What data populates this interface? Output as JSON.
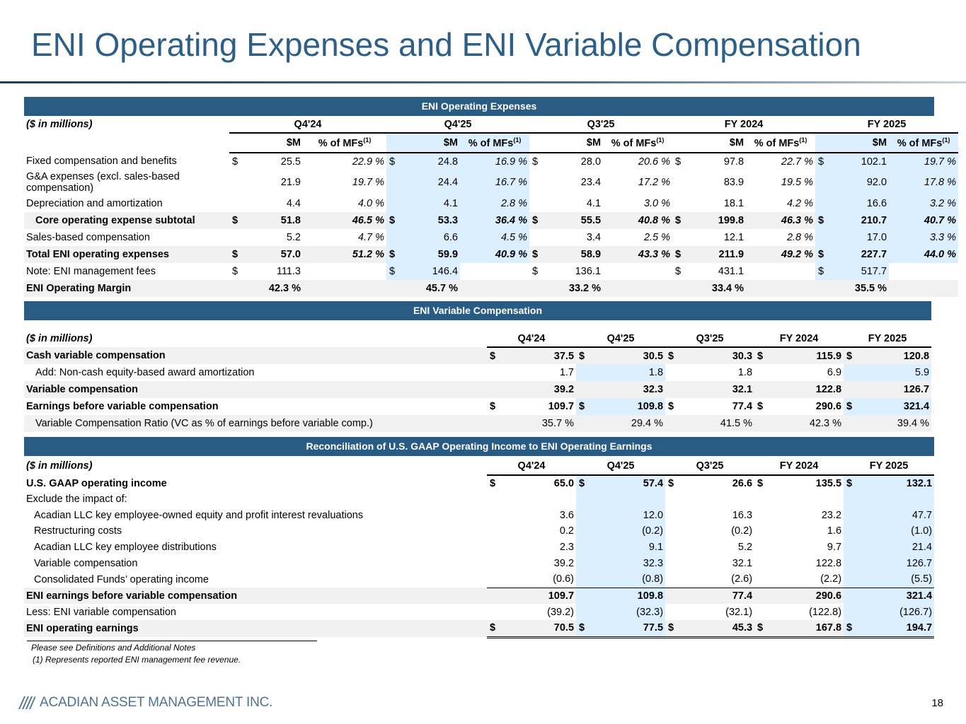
{
  "title": "ENI Operating Expenses and ENI Variable Compensation",
  "colors": {
    "band": "#2a5b82",
    "highlight": "#dcefff",
    "title": "#2e5f86"
  },
  "opex": {
    "band": "ENI Operating Expenses",
    "units": "($ in millions)",
    "periods": [
      "Q4'24",
      "Q4'25",
      "Q3'25",
      "FY 2024",
      "FY 2025"
    ],
    "col_m": "$M",
    "col_pct": "% of MFs",
    "col_pct_sup": "(1)",
    "rows": [
      {
        "label": "Fixed compensation and benefits",
        "vals": [
          [
            "$",
            "25.5",
            "22.9 %"
          ],
          [
            "$",
            "24.8",
            "16.9 %"
          ],
          [
            "$",
            "28.0",
            "20.6 %"
          ],
          [
            "$",
            "97.8",
            "22.7 %"
          ],
          [
            "$",
            "102.1",
            "19.7 %"
          ]
        ]
      },
      {
        "label": "G&A expenses (excl. sales-based compensation)",
        "vals": [
          [
            "",
            "21.9",
            "19.7 %"
          ],
          [
            "",
            "24.4",
            "16.7 %"
          ],
          [
            "",
            "23.4",
            "17.2 %"
          ],
          [
            "",
            "83.9",
            "19.5 %"
          ],
          [
            "",
            "92.0",
            "17.8 %"
          ]
        ]
      },
      {
        "label": "Depreciation and amortization",
        "vals": [
          [
            "",
            "4.4",
            "4.0 %"
          ],
          [
            "",
            "4.1",
            "2.8 %"
          ],
          [
            "",
            "4.1",
            "3.0 %"
          ],
          [
            "",
            "18.1",
            "4.2 %"
          ],
          [
            "",
            "16.6",
            "3.2 %"
          ]
        ]
      },
      {
        "label": "Core operating expense subtotal",
        "vals": [
          [
            "$",
            "51.8",
            "46.5 %"
          ],
          [
            "$",
            "53.3",
            "36.4 %"
          ],
          [
            "$",
            "55.5",
            "40.8 %"
          ],
          [
            "$",
            "199.8",
            "46.3 %"
          ],
          [
            "$",
            "210.7",
            "40.7 %"
          ]
        ]
      },
      {
        "label": "Sales-based compensation",
        "vals": [
          [
            "",
            "5.2",
            "4.7 %"
          ],
          [
            "",
            "6.6",
            "4.5 %"
          ],
          [
            "",
            "3.4",
            "2.5 %"
          ],
          [
            "",
            "12.1",
            "2.8 %"
          ],
          [
            "",
            "17.0",
            "3.3 %"
          ]
        ]
      },
      {
        "label": "Total ENI operating expenses",
        "vals": [
          [
            "$",
            "57.0",
            "51.2 %"
          ],
          [
            "$",
            "59.9",
            "40.9 %"
          ],
          [
            "$",
            "58.9",
            "43.3 %"
          ],
          [
            "$",
            "211.9",
            "49.2 %"
          ],
          [
            "$",
            "227.7",
            "44.0 %"
          ]
        ]
      },
      {
        "label": "Note: ENI management fees",
        "vals": [
          [
            "$",
            "111.3",
            ""
          ],
          [
            "$",
            "146.4",
            ""
          ],
          [
            "$",
            "136.1",
            ""
          ],
          [
            "$",
            "431.1",
            ""
          ],
          [
            "$",
            "517.7",
            ""
          ]
        ]
      }
    ],
    "margin_label": "ENI Operating Margin",
    "margins": [
      "42.3 %",
      "45.7 %",
      "33.2 %",
      "33.4 %",
      "35.5 %"
    ]
  },
  "vc": {
    "band": "ENI Variable Compensation",
    "units": "($ in millions)",
    "periods": [
      "Q4'24",
      "Q4'25",
      "Q3'25",
      "FY 2024",
      "FY 2025"
    ],
    "rows": [
      {
        "label": "Cash variable compensation",
        "vals": [
          [
            "$",
            "37.5"
          ],
          [
            "$",
            "30.5"
          ],
          [
            "$",
            "30.3"
          ],
          [
            "$",
            "115.9"
          ],
          [
            "$",
            "120.8"
          ]
        ]
      },
      {
        "label": "Add: Non-cash equity-based award amortization",
        "vals": [
          [
            "",
            "1.7"
          ],
          [
            "",
            "1.8"
          ],
          [
            "",
            "1.8"
          ],
          [
            "",
            "6.9"
          ],
          [
            "",
            "5.9"
          ]
        ]
      },
      {
        "label": "Variable compensation",
        "vals": [
          [
            "",
            "39.2"
          ],
          [
            "",
            "32.3"
          ],
          [
            "",
            "32.1"
          ],
          [
            "",
            "122.8"
          ],
          [
            "",
            "126.7"
          ]
        ]
      },
      {
        "label": "Earnings before variable compensation",
        "vals": [
          [
            "$",
            "109.7"
          ],
          [
            "$",
            "109.8"
          ],
          [
            "$",
            "77.4"
          ],
          [
            "$",
            "290.6"
          ],
          [
            "$",
            "321.4"
          ]
        ]
      },
      {
        "label": "Variable Compensation Ratio (VC as % of earnings before variable comp.)",
        "vals": [
          [
            "",
            "35.7 %"
          ],
          [
            "",
            "29.4 %"
          ],
          [
            "",
            "41.5 %"
          ],
          [
            "",
            "42.3 %"
          ],
          [
            "",
            "39.4 %"
          ]
        ]
      }
    ]
  },
  "recon": {
    "band": "Reconciliation of U.S. GAAP Operating Income to ENI Operating Earnings",
    "units": "($ in millions)",
    "periods": [
      "Q4'24",
      "Q4'25",
      "Q3'25",
      "FY 2024",
      "FY 2025"
    ],
    "rows": [
      {
        "label": "U.S. GAAP operating income",
        "vals": [
          [
            "$",
            "65.0"
          ],
          [
            "$",
            "57.4"
          ],
          [
            "$",
            "26.6"
          ],
          [
            "$",
            "135.5"
          ],
          [
            "$",
            "132.1"
          ]
        ]
      },
      {
        "label": "Exclude the impact of:",
        "vals": [
          [
            "",
            ""
          ],
          [
            "",
            ""
          ],
          [
            "",
            ""
          ],
          [
            "",
            ""
          ],
          [
            "",
            ""
          ]
        ]
      },
      {
        "label": "Acadian LLC key employee-owned equity and profit interest revaluations",
        "vals": [
          [
            "",
            "3.6"
          ],
          [
            "",
            "12.0"
          ],
          [
            "",
            "16.3"
          ],
          [
            "",
            "23.2"
          ],
          [
            "",
            "47.7"
          ]
        ]
      },
      {
        "label": "Restructuring costs",
        "vals": [
          [
            "",
            "0.2"
          ],
          [
            "",
            "(0.2)"
          ],
          [
            "",
            "(0.2)"
          ],
          [
            "",
            "1.6"
          ],
          [
            "",
            "(1.0)"
          ]
        ]
      },
      {
        "label": "Acadian LLC key employee distributions",
        "vals": [
          [
            "",
            "2.3"
          ],
          [
            "",
            "9.1"
          ],
          [
            "",
            "5.2"
          ],
          [
            "",
            "9.7"
          ],
          [
            "",
            "21.4"
          ]
        ]
      },
      {
        "label": "Variable compensation",
        "vals": [
          [
            "",
            "39.2"
          ],
          [
            "",
            "32.3"
          ],
          [
            "",
            "32.1"
          ],
          [
            "",
            "122.8"
          ],
          [
            "",
            "126.7"
          ]
        ]
      },
      {
        "label": "Consolidated Funds’ operating income",
        "vals": [
          [
            "",
            "(0.6)"
          ],
          [
            "",
            "(0.8)"
          ],
          [
            "",
            "(2.6)"
          ],
          [
            "",
            "(2.2)"
          ],
          [
            "",
            "(5.5)"
          ]
        ]
      },
      {
        "label": "ENI earnings before variable compensation",
        "vals": [
          [
            "",
            "109.7"
          ],
          [
            "",
            "109.8"
          ],
          [
            "",
            "77.4"
          ],
          [
            "",
            "290.6"
          ],
          [
            "",
            "321.4"
          ]
        ]
      },
      {
        "label": "Less: ENI variable compensation",
        "vals": [
          [
            "",
            "(39.2)"
          ],
          [
            "",
            "(32.3)"
          ],
          [
            "",
            "(32.1)"
          ],
          [
            "",
            "(122.8)"
          ],
          [
            "",
            "(126.7)"
          ]
        ]
      },
      {
        "label": "ENI operating earnings",
        "vals": [
          [
            "$",
            "70.5"
          ],
          [
            "$",
            "77.5"
          ],
          [
            "$",
            "45.3"
          ],
          [
            "$",
            "167.8"
          ],
          [
            "$",
            "194.7"
          ]
        ]
      }
    ]
  },
  "footnotes": {
    "line1": "Please see Definitions and Additional Notes",
    "line2": "(1)   Represents reported ENI management fee revenue."
  },
  "footer": {
    "company": "ACADIAN ASSET MANAGEMENT INC.",
    "page": "18",
    "logo_icon": "acadian-stripes-logo"
  }
}
